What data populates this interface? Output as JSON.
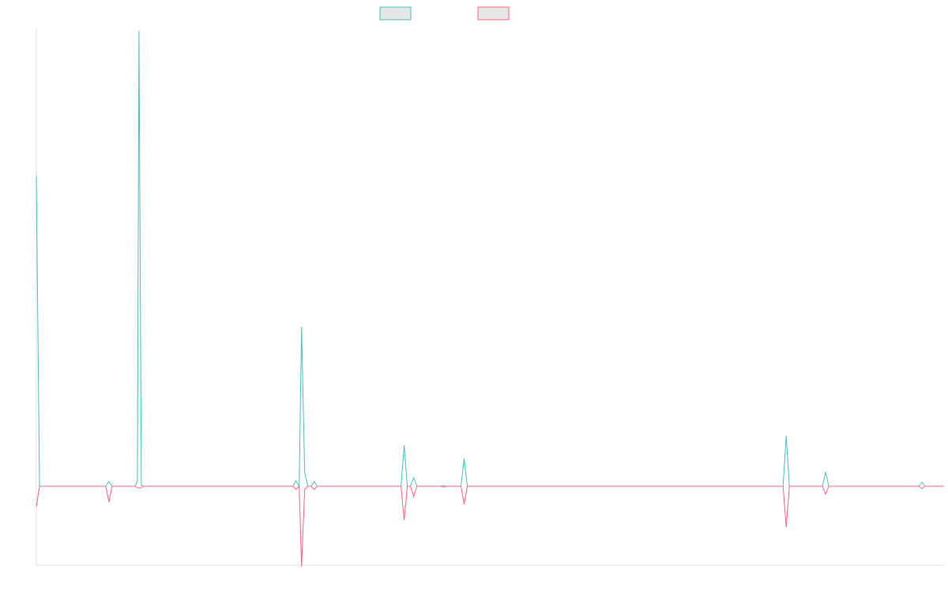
{
  "chart_data": {
    "type": "line",
    "title": "",
    "xlabel": "",
    "ylabel": "",
    "legend_position": "top-center",
    "grid": false,
    "ylim": [
      -100,
      580
    ],
    "xlim": [
      0,
      1150
    ],
    "series": [
      {
        "color": "#4bc0c0",
        "legend_fill": "#e6e6e6",
        "points": [
          [
            0,
            393
          ],
          [
            4,
            0
          ],
          [
            88,
            0
          ],
          [
            92,
            6
          ],
          [
            96,
            0
          ],
          [
            125,
            0
          ],
          [
            128,
            6
          ],
          [
            130,
            577
          ],
          [
            133,
            1
          ],
          [
            136,
            0
          ],
          [
            325,
            0
          ],
          [
            329,
            7
          ],
          [
            333,
            0
          ],
          [
            336,
            202
          ],
          [
            340,
            17
          ],
          [
            344,
            0
          ],
          [
            348,
            0
          ],
          [
            352,
            6
          ],
          [
            356,
            0
          ],
          [
            462,
            0
          ],
          [
            466,
            52
          ],
          [
            470,
            0
          ],
          [
            474,
            0
          ],
          [
            478,
            11
          ],
          [
            482,
            0
          ],
          [
            512,
            0
          ],
          [
            516,
            1
          ],
          [
            520,
            0
          ],
          [
            538,
            0
          ],
          [
            542,
            35
          ],
          [
            546,
            0
          ],
          [
            946,
            0
          ],
          [
            950,
            64
          ],
          [
            954,
            0
          ],
          [
            996,
            0
          ],
          [
            1000,
            18
          ],
          [
            1004,
            0
          ],
          [
            1118,
            0
          ],
          [
            1122,
            5
          ],
          [
            1126,
            0
          ],
          [
            1150,
            0
          ]
        ]
      },
      {
        "color": "#ff6384",
        "legend_fill": "#e6e6e6",
        "points": [
          [
            0,
            -26
          ],
          [
            4,
            0
          ],
          [
            88,
            0
          ],
          [
            92,
            -20
          ],
          [
            96,
            0
          ],
          [
            125,
            0
          ],
          [
            128,
            -2
          ],
          [
            133,
            -2
          ],
          [
            136,
            0
          ],
          [
            325,
            0
          ],
          [
            329,
            -4
          ],
          [
            333,
            0
          ],
          [
            336,
            -102
          ],
          [
            340,
            -4
          ],
          [
            344,
            0
          ],
          [
            348,
            0
          ],
          [
            352,
            -4
          ],
          [
            356,
            0
          ],
          [
            462,
            0
          ],
          [
            466,
            -43
          ],
          [
            470,
            0
          ],
          [
            474,
            0
          ],
          [
            478,
            -13
          ],
          [
            482,
            0
          ],
          [
            512,
            0
          ],
          [
            516,
            -1
          ],
          [
            520,
            0
          ],
          [
            538,
            0
          ],
          [
            542,
            -23
          ],
          [
            546,
            0
          ],
          [
            946,
            0
          ],
          [
            950,
            -52
          ],
          [
            954,
            0
          ],
          [
            996,
            0
          ],
          [
            1000,
            -10
          ],
          [
            1004,
            0
          ],
          [
            1118,
            0
          ],
          [
            1122,
            -3
          ],
          [
            1126,
            0
          ],
          [
            1150,
            0
          ]
        ]
      }
    ]
  }
}
